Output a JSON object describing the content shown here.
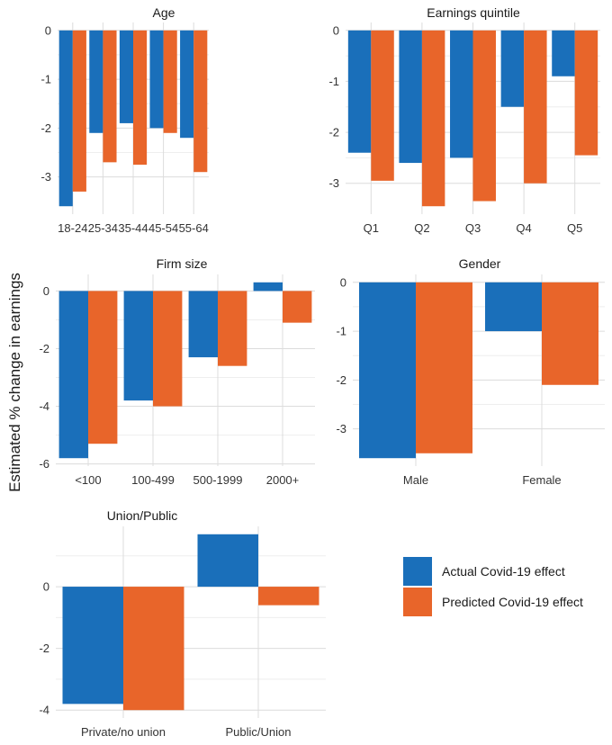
{
  "ylabel": "Estimated % change in earnings",
  "colors": {
    "actual": "#1a6fba",
    "predicted": "#e8652a"
  },
  "legend": [
    {
      "label": "Actual Covid-19 effect",
      "color": "#1a6fba"
    },
    {
      "label": "Predicted Covid-19 effect",
      "color": "#e8652a"
    }
  ],
  "chart_data": [
    {
      "type": "bar",
      "title": "Age",
      "categories": [
        "18-24",
        "25-34",
        "35-44",
        "45-54",
        "55-64"
      ],
      "series": [
        {
          "name": "Actual Covid-19 effect",
          "values": [
            -3.6,
            -2.1,
            -1.9,
            -2.0,
            -2.2
          ]
        },
        {
          "name": "Predicted Covid-19 effect",
          "values": [
            -3.3,
            -2.7,
            -2.75,
            -2.1,
            -2.9
          ]
        }
      ],
      "ylim": [
        -3.6,
        0
      ],
      "yticks": [
        0,
        -1,
        -2,
        -3
      ],
      "ytick_labels": [
        "0",
        "-1",
        "-2",
        "-3"
      ]
    },
    {
      "type": "bar",
      "title": "Earnings quintile",
      "categories": [
        "Q1",
        "Q2",
        "Q3",
        "Q4",
        "Q5"
      ],
      "series": [
        {
          "name": "Actual Covid-19 effect",
          "values": [
            -2.4,
            -2.6,
            -2.5,
            -1.5,
            -0.9
          ]
        },
        {
          "name": "Predicted Covid-19 effect",
          "values": [
            -2.95,
            -3.45,
            -3.35,
            -3.0,
            -2.45
          ]
        }
      ],
      "ylim": [
        -3.45,
        0
      ],
      "yticks": [
        0,
        -1,
        -2,
        -3
      ],
      "ytick_labels": [
        "0",
        "-1",
        "-2",
        "-3"
      ]
    },
    {
      "type": "bar",
      "title": "Firm size",
      "categories": [
        "<100",
        "100-499",
        "500-1999",
        "2000+"
      ],
      "series": [
        {
          "name": "Actual Covid-19 effect",
          "values": [
            -5.8,
            -3.8,
            -2.3,
            0.3
          ]
        },
        {
          "name": "Predicted Covid-19 effect",
          "values": [
            -5.3,
            -4.0,
            -2.6,
            -1.1
          ]
        }
      ],
      "ylim": [
        -5.8,
        0.3
      ],
      "yticks": [
        0,
        -2,
        -4,
        -6
      ],
      "ytick_labels": [
        "0",
        "-2",
        "-4",
        "-6"
      ]
    },
    {
      "type": "bar",
      "title": "Gender",
      "categories": [
        "Male",
        "Female"
      ],
      "series": [
        {
          "name": "Actual Covid-19 effect",
          "values": [
            -3.6,
            -1.0
          ]
        },
        {
          "name": "Predicted Covid-19 effect",
          "values": [
            -3.5,
            -2.1
          ]
        }
      ],
      "ylim": [
        -3.6,
        0
      ],
      "yticks": [
        0,
        -1,
        -2,
        -3
      ],
      "ytick_labels": [
        "0",
        "-1",
        "-2",
        "-3"
      ]
    },
    {
      "type": "bar",
      "title": "Union/Public",
      "categories": [
        "Private/no union",
        "Public/Union"
      ],
      "series": [
        {
          "name": "Actual Covid-19 effect",
          "values": [
            -3.8,
            1.7
          ]
        },
        {
          "name": "Predicted Covid-19 effect",
          "values": [
            -4.0,
            -0.6
          ]
        }
      ],
      "ylim": [
        -4.0,
        1.7
      ],
      "yticks": [
        0,
        -2,
        -4
      ],
      "ytick_labels": [
        "0",
        "-2",
        "-4"
      ]
    }
  ]
}
